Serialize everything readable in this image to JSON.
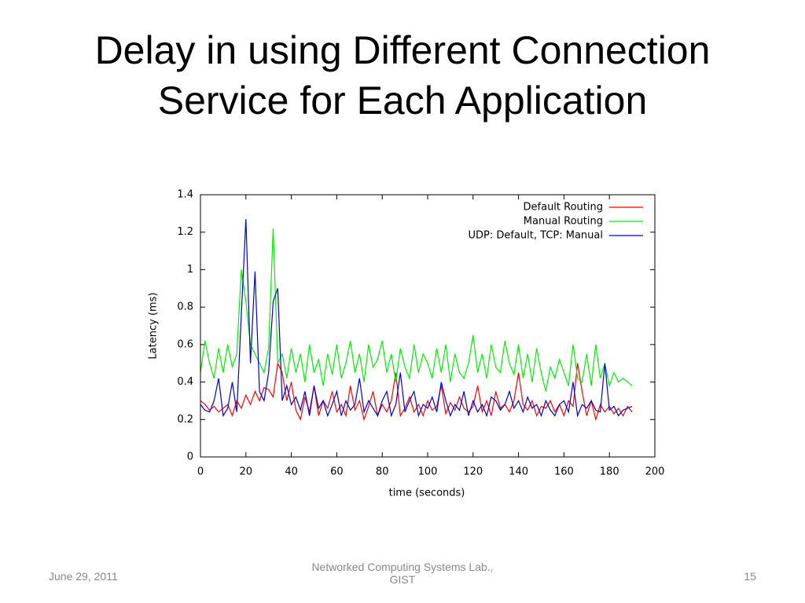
{
  "slide_title": "Delay in using Different Connection Service for Each Application",
  "footer": {
    "date": "June 29, 2011",
    "center": "Networked Computing Systems Lab., GIST",
    "page": "15"
  },
  "chart_data": {
    "type": "line",
    "x_label": "time (seconds)",
    "y_label": "Latency (ms)",
    "xlim": [
      0,
      200
    ],
    "xticks": [
      0,
      20,
      40,
      60,
      80,
      100,
      120,
      140,
      160,
      180,
      200
    ],
    "ylim": [
      0,
      1.4
    ],
    "yticks": [
      0,
      0.2,
      0.4,
      0.6,
      0.8,
      1,
      1.2,
      1.4
    ],
    "legend": "top-right",
    "x": [
      0,
      2,
      4,
      6,
      8,
      10,
      12,
      14,
      16,
      18,
      20,
      22,
      24,
      26,
      28,
      30,
      32,
      34,
      36,
      38,
      40,
      42,
      44,
      46,
      48,
      50,
      52,
      54,
      56,
      58,
      60,
      62,
      64,
      66,
      68,
      70,
      72,
      74,
      76,
      78,
      80,
      82,
      84,
      86,
      88,
      90,
      92,
      94,
      96,
      98,
      100,
      102,
      104,
      106,
      108,
      110,
      112,
      114,
      116,
      118,
      120,
      122,
      124,
      126,
      128,
      130,
      132,
      134,
      136,
      138,
      140,
      142,
      144,
      146,
      148,
      150,
      152,
      154,
      156,
      158,
      160,
      162,
      164,
      166,
      168,
      170,
      172,
      174,
      176,
      178,
      180,
      182,
      184,
      186,
      188,
      190
    ],
    "series": [
      {
        "name": "Default Routing",
        "color": "#ff0000",
        "values": [
          0.3,
          0.28,
          0.25,
          0.27,
          0.24,
          0.26,
          0.28,
          0.22,
          0.3,
          0.26,
          0.33,
          0.28,
          0.35,
          0.3,
          0.37,
          0.36,
          0.32,
          0.5,
          0.45,
          0.3,
          0.4,
          0.25,
          0.2,
          0.32,
          0.24,
          0.38,
          0.22,
          0.3,
          0.26,
          0.35,
          0.24,
          0.28,
          0.22,
          0.38,
          0.25,
          0.3,
          0.2,
          0.27,
          0.35,
          0.22,
          0.28,
          0.24,
          0.3,
          0.45,
          0.22,
          0.26,
          0.32,
          0.24,
          0.28,
          0.22,
          0.3,
          0.25,
          0.27,
          0.38,
          0.23,
          0.29,
          0.25,
          0.32,
          0.26,
          0.24,
          0.27,
          0.38,
          0.24,
          0.3,
          0.22,
          0.35,
          0.26,
          0.28,
          0.24,
          0.3,
          0.45,
          0.28,
          0.25,
          0.3,
          0.22,
          0.27,
          0.26,
          0.3,
          0.24,
          0.28,
          0.22,
          0.3,
          0.27,
          0.5,
          0.35,
          0.22,
          0.3,
          0.2,
          0.28,
          0.24,
          0.27,
          0.23,
          0.26,
          0.22,
          0.27,
          0.24
        ]
      },
      {
        "name": "Manual Routing",
        "color": "#00ee00",
        "values": [
          0.45,
          0.62,
          0.5,
          0.42,
          0.58,
          0.45,
          0.6,
          0.48,
          0.55,
          1.0,
          0.83,
          0.6,
          0.55,
          0.5,
          0.45,
          0.58,
          1.22,
          0.5,
          0.55,
          0.42,
          0.58,
          0.45,
          0.55,
          0.4,
          0.6,
          0.45,
          0.52,
          0.38,
          0.55,
          0.44,
          0.6,
          0.42,
          0.5,
          0.62,
          0.45,
          0.55,
          0.4,
          0.6,
          0.48,
          0.52,
          0.62,
          0.45,
          0.55,
          0.4,
          0.58,
          0.48,
          0.42,
          0.6,
          0.45,
          0.55,
          0.5,
          0.42,
          0.58,
          0.45,
          0.6,
          0.4,
          0.55,
          0.45,
          0.42,
          0.5,
          0.65,
          0.45,
          0.55,
          0.42,
          0.6,
          0.48,
          0.45,
          0.62,
          0.5,
          0.44,
          0.6,
          0.42,
          0.55,
          0.4,
          0.58,
          0.45,
          0.35,
          0.48,
          0.42,
          0.52,
          0.45,
          0.38,
          0.6,
          0.42,
          0.4,
          0.55,
          0.38,
          0.6,
          0.42,
          0.5,
          0.38,
          0.45,
          0.4,
          0.42,
          0.4,
          0.38
        ]
      },
      {
        "name": "UDP: Default, TCP: Manual",
        "color": "#0000cc",
        "values": [
          0.28,
          0.25,
          0.24,
          0.3,
          0.42,
          0.22,
          0.26,
          0.4,
          0.24,
          0.76,
          1.27,
          0.5,
          0.99,
          0.35,
          0.3,
          0.45,
          0.83,
          0.9,
          0.3,
          0.38,
          0.28,
          0.32,
          0.25,
          0.35,
          0.22,
          0.38,
          0.26,
          0.3,
          0.22,
          0.28,
          0.35,
          0.22,
          0.3,
          0.25,
          0.28,
          0.42,
          0.24,
          0.3,
          0.26,
          0.22,
          0.3,
          0.35,
          0.22,
          0.28,
          0.45,
          0.24,
          0.3,
          0.35,
          0.22,
          0.28,
          0.26,
          0.32,
          0.24,
          0.4,
          0.3,
          0.22,
          0.28,
          0.25,
          0.35,
          0.22,
          0.3,
          0.24,
          0.28,
          0.22,
          0.32,
          0.3,
          0.25,
          0.28,
          0.35,
          0.26,
          0.3,
          0.24,
          0.32,
          0.26,
          0.28,
          0.22,
          0.3,
          0.25,
          0.22,
          0.28,
          0.3,
          0.24,
          0.4,
          0.22,
          0.28,
          0.26,
          0.3,
          0.25,
          0.24,
          0.5,
          0.25,
          0.27,
          0.22,
          0.25,
          0.26,
          0.27
        ]
      }
    ]
  }
}
